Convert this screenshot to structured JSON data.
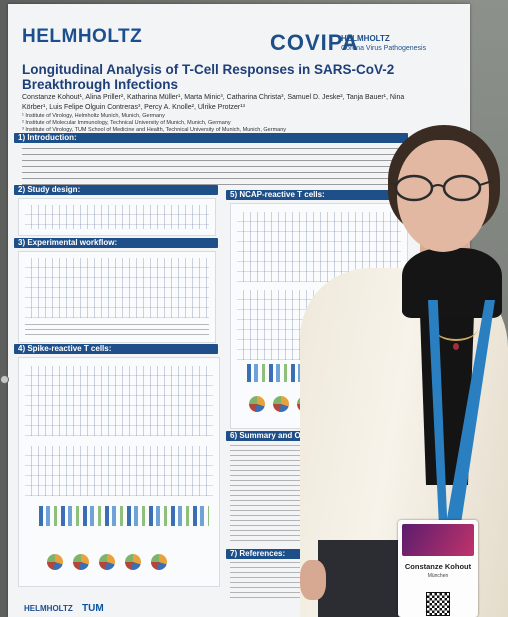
{
  "poster": {
    "org_logo": "HELMHOLTZ",
    "covipa_logo": "COVIPA",
    "covipa_line1": "HELMHOLTZ",
    "covipa_line2": "Corona Virus Pathogenesis",
    "title": "Longitudinal Analysis of T-Cell Responses in SARS-CoV-2 Breakthrough Infections",
    "authors": "Constanze Kohout¹, Alina Priller², Katharina Müller¹, Marta Minic³, Catharina Christa³, Samuel D. Jeske², Tanja Bauer¹, Nina Körber¹, Luis Felipe Olguin Contreras³, Percy A. Knolle², Ulrike Protzer¹³",
    "affiliations": [
      "¹ Institute of Virology, Helmholtz Munich, Munich, Germany",
      "² Institute of Molecular Immunology, Technical University of Munich, Munich, Germany",
      "³ Institute of Virology, TUM School of Medicine and Health, Technical University of Munich, Munich, Germany"
    ],
    "sections": [
      "1) Introduction:",
      "2) Study design:",
      "3) Experimental workflow:",
      "4) Spike-reactive T cells:",
      "5) NCAP-reactive T cells:",
      "6) Summary and Outlook:",
      "7) References:"
    ],
    "bottom_logo": "HELMHOLTZ",
    "bottom_logo2": "TUM"
  },
  "badge": {
    "name": "Constanze Kohout",
    "city": "München"
  }
}
